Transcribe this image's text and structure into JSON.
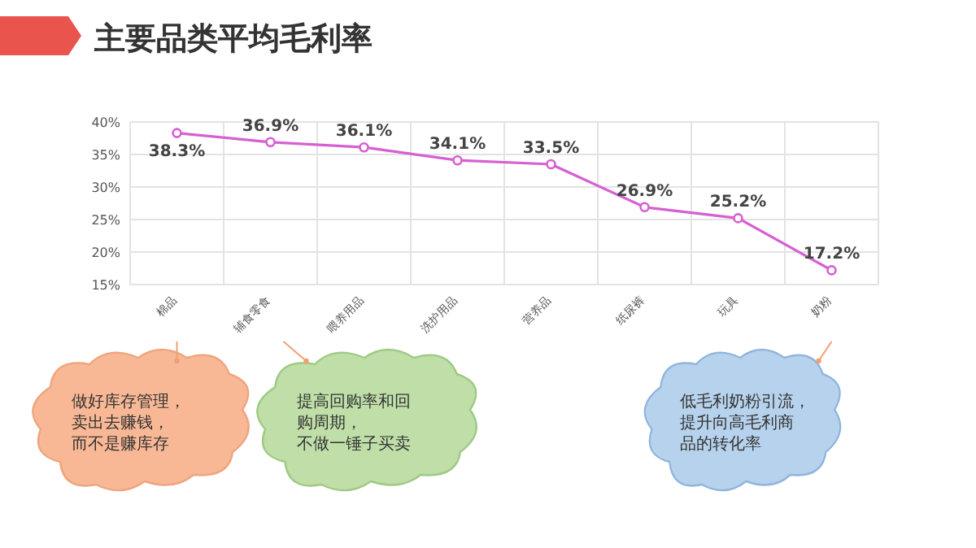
{
  "chart_data": {
    "type": "line",
    "title": "主要品类平均毛利率",
    "categories": [
      "棉品",
      "辅食零食",
      "喂养用品",
      "洗护用品",
      "营养品",
      "纸尿裤",
      "玩具",
      "奶粉"
    ],
    "series": [
      {
        "color": "#d660d3",
        "values": [
          38.3,
          36.9,
          36.1,
          34.1,
          33.5,
          26.9,
          25.2,
          17.2
        ]
      }
    ],
    "ylim": [
      15,
      40
    ],
    "yticks": [
      {
        "value": 15,
        "label": "15%"
      },
      {
        "value": 20,
        "label": "20%"
      },
      {
        "value": 25,
        "label": "25%"
      },
      {
        "value": 30,
        "label": "30%"
      },
      {
        "value": 35,
        "label": "35%"
      },
      {
        "value": 40,
        "label": "40%"
      }
    ],
    "value_labels": [
      "38.3%",
      "36.9%",
      "36.1%",
      "34.1%",
      "33.5%",
      "26.9%",
      "25.2%",
      "17.2%"
    ],
    "grid": true,
    "marker": "circle",
    "line_style": "solid",
    "annotations": [
      "做好库存管理，卖出去赚钱，而不是赚库存",
      "提高回购率和回购周期，不做一锤子买卖",
      "低毛利奶粉引流，提升向高毛利商品的转化率"
    ]
  }
}
